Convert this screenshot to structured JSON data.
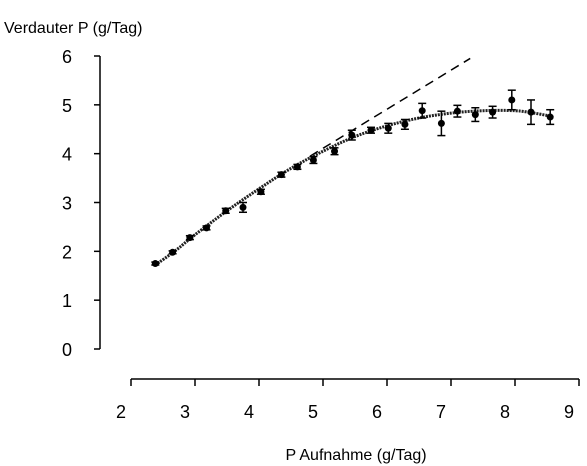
{
  "chart_data": {
    "type": "scatter",
    "title": "",
    "ylabel": "Verdauter P (g/Tag)",
    "xlabel": "P Aufnahme (g/Tag)",
    "xlim": [
      2,
      9
    ],
    "ylim": [
      0,
      6
    ],
    "x_ticks": [
      2,
      3,
      4,
      5,
      6,
      7,
      8,
      9
    ],
    "y_ticks": [
      0,
      1,
      2,
      3,
      4,
      5,
      6
    ],
    "x_tick_labels": [
      "2",
      "3",
      "4",
      "5",
      "6",
      "7",
      "8",
      "9"
    ],
    "y_tick_labels": [
      "0",
      "1",
      "2",
      "3",
      "4",
      "5",
      "6"
    ],
    "grid": false,
    "legend": "none",
    "points": [
      {
        "x": 2.38,
        "y": 1.75,
        "err": 0.03
      },
      {
        "x": 2.65,
        "y": 1.98,
        "err": 0.03
      },
      {
        "x": 2.92,
        "y": 2.28,
        "err": 0.04
      },
      {
        "x": 3.18,
        "y": 2.48,
        "err": 0.04
      },
      {
        "x": 3.48,
        "y": 2.83,
        "err": 0.05
      },
      {
        "x": 3.75,
        "y": 2.9,
        "err": 0.1
      },
      {
        "x": 4.03,
        "y": 3.22,
        "err": 0.05
      },
      {
        "x": 4.35,
        "y": 3.57,
        "err": 0.05
      },
      {
        "x": 4.6,
        "y": 3.73,
        "err": 0.05
      },
      {
        "x": 4.85,
        "y": 3.87,
        "err": 0.07
      },
      {
        "x": 5.18,
        "y": 4.05,
        "err": 0.07
      },
      {
        "x": 5.45,
        "y": 4.38,
        "err": 0.1
      },
      {
        "x": 5.75,
        "y": 4.48,
        "err": 0.06
      },
      {
        "x": 6.02,
        "y": 4.52,
        "err": 0.1
      },
      {
        "x": 6.28,
        "y": 4.6,
        "err": 0.1
      },
      {
        "x": 6.55,
        "y": 4.88,
        "err": 0.15
      },
      {
        "x": 6.85,
        "y": 4.62,
        "err": 0.25
      },
      {
        "x": 7.1,
        "y": 4.87,
        "err": 0.12
      },
      {
        "x": 7.38,
        "y": 4.8,
        "err": 0.14
      },
      {
        "x": 7.65,
        "y": 4.85,
        "err": 0.12
      },
      {
        "x": 7.95,
        "y": 5.1,
        "err": 0.2
      },
      {
        "x": 8.25,
        "y": 4.85,
        "err": 0.25
      },
      {
        "x": 8.55,
        "y": 4.75,
        "err": 0.15
      }
    ],
    "fit_curve": {
      "x": [
        2.38,
        2.7,
        3.0,
        3.5,
        4.0,
        4.5,
        5.0,
        5.5,
        6.0,
        6.5,
        7.0,
        7.5,
        8.0,
        8.3,
        8.55
      ],
      "y": [
        1.72,
        2.02,
        2.34,
        2.83,
        3.28,
        3.7,
        4.05,
        4.35,
        4.57,
        4.73,
        4.83,
        4.88,
        4.88,
        4.83,
        4.77
      ]
    },
    "reference_line": {
      "x": [
        4.8,
        7.3
      ],
      "y": [
        3.95,
        5.95
      ]
    }
  }
}
